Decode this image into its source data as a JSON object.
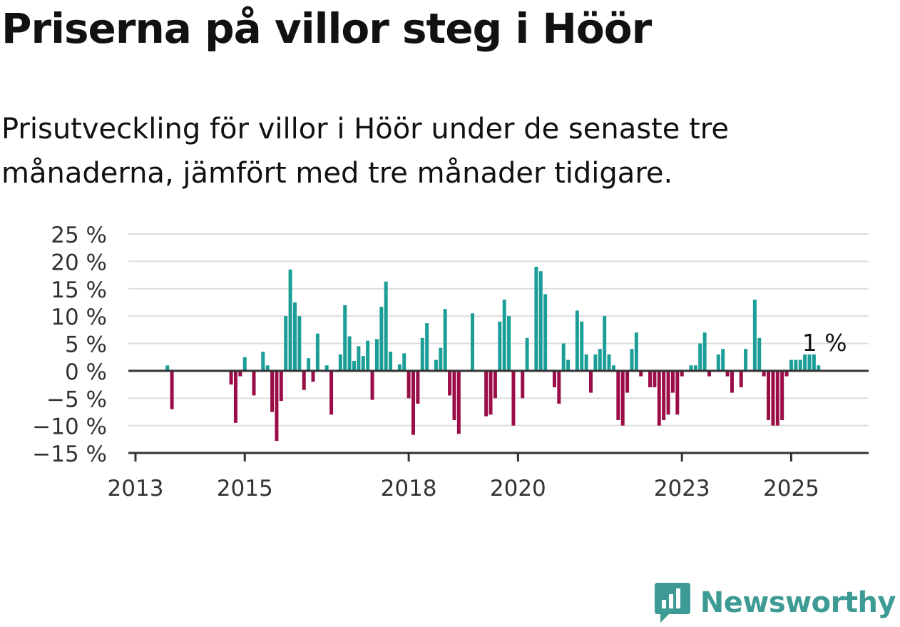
{
  "title": "Priserna på villor steg i Höör",
  "subtitle": "Prisutveckling för villor i Höör under de senaste tre månaderna, jämfört med tre månader tidigare.",
  "brand": {
    "name": "Newsworthy",
    "icon": "newsworthy-logo-icon",
    "color": "#3d9a94"
  },
  "colors": {
    "positive": "#1a9e97",
    "negative": "#9b0d47",
    "grid": "#dddddd",
    "axis": "#333333"
  },
  "chart_data": {
    "type": "bar",
    "x_unit": "month",
    "y_unit": "%",
    "ylim": [
      -15,
      25
    ],
    "y_ticks": [
      25,
      20,
      15,
      10,
      5,
      0,
      -5,
      -10,
      -15
    ],
    "y_tick_labels": [
      "25 %",
      "20 %",
      "15 %",
      "10 %",
      "5 %",
      "0 %",
      "−5 %",
      "−10 %",
      "−15 %"
    ],
    "x_ticks": [
      "2013",
      "2015",
      "2018",
      "2020",
      "2023",
      "2025"
    ],
    "x_range": [
      "2013-01",
      "2026-06"
    ],
    "annotation": {
      "text": "1 %",
      "month": "2025-08",
      "value": 1
    },
    "grid": true,
    "bars": [
      {
        "month": "2013-08",
        "value": 1
      },
      {
        "month": "2013-09",
        "value": -7
      },
      {
        "month": "2014-10",
        "value": -2.5
      },
      {
        "month": "2014-11",
        "value": -9.5
      },
      {
        "month": "2014-12",
        "value": -1
      },
      {
        "month": "2015-01",
        "value": 2.5
      },
      {
        "month": "2015-03",
        "value": -4.5
      },
      {
        "month": "2015-05",
        "value": 3.5
      },
      {
        "month": "2015-06",
        "value": 1
      },
      {
        "month": "2015-07",
        "value": -7.5
      },
      {
        "month": "2015-08",
        "value": -12.8
      },
      {
        "month": "2015-09",
        "value": -5.5
      },
      {
        "month": "2015-10",
        "value": 10
      },
      {
        "month": "2015-11",
        "value": 18.5
      },
      {
        "month": "2015-12",
        "value": 12.5
      },
      {
        "month": "2016-01",
        "value": 10
      },
      {
        "month": "2016-02",
        "value": -3.5
      },
      {
        "month": "2016-03",
        "value": 2.3
      },
      {
        "month": "2016-04",
        "value": -2
      },
      {
        "month": "2016-05",
        "value": 6.8
      },
      {
        "month": "2016-07",
        "value": 1
      },
      {
        "month": "2016-08",
        "value": -8
      },
      {
        "month": "2016-10",
        "value": 3
      },
      {
        "month": "2016-11",
        "value": 12
      },
      {
        "month": "2016-12",
        "value": 6.3
      },
      {
        "month": "2017-01",
        "value": 1.8
      },
      {
        "month": "2017-02",
        "value": 4.5
      },
      {
        "month": "2017-03",
        "value": 2.7
      },
      {
        "month": "2017-04",
        "value": 5.5
      },
      {
        "month": "2017-05",
        "value": -5.3
      },
      {
        "month": "2017-06",
        "value": 5.8
      },
      {
        "month": "2017-07",
        "value": 11.7
      },
      {
        "month": "2017-08",
        "value": 16.3
      },
      {
        "month": "2017-09",
        "value": 3.5
      },
      {
        "month": "2017-11",
        "value": 1.2
      },
      {
        "month": "2017-12",
        "value": 3.2
      },
      {
        "month": "2018-01",
        "value": -5
      },
      {
        "month": "2018-02",
        "value": -11.7
      },
      {
        "month": "2018-03",
        "value": -6
      },
      {
        "month": "2018-04",
        "value": 6
      },
      {
        "month": "2018-05",
        "value": 8.7
      },
      {
        "month": "2018-07",
        "value": 2
      },
      {
        "month": "2018-08",
        "value": 4.2
      },
      {
        "month": "2018-09",
        "value": 11.3
      },
      {
        "month": "2018-10",
        "value": -4.5
      },
      {
        "month": "2018-11",
        "value": -9
      },
      {
        "month": "2018-12",
        "value": -11.5
      },
      {
        "month": "2019-03",
        "value": 10.5
      },
      {
        "month": "2019-06",
        "value": -8.3
      },
      {
        "month": "2019-07",
        "value": -8
      },
      {
        "month": "2019-08",
        "value": -5
      },
      {
        "month": "2019-09",
        "value": 9
      },
      {
        "month": "2019-10",
        "value": 13
      },
      {
        "month": "2019-11",
        "value": 10
      },
      {
        "month": "2019-12",
        "value": -10
      },
      {
        "month": "2020-02",
        "value": -5
      },
      {
        "month": "2020-03",
        "value": 6
      },
      {
        "month": "2020-05",
        "value": 19
      },
      {
        "month": "2020-06",
        "value": 18.2
      },
      {
        "month": "2020-07",
        "value": 14
      },
      {
        "month": "2020-09",
        "value": -3
      },
      {
        "month": "2020-10",
        "value": -6
      },
      {
        "month": "2020-11",
        "value": 5
      },
      {
        "month": "2020-12",
        "value": 2
      },
      {
        "month": "2021-02",
        "value": 11
      },
      {
        "month": "2021-03",
        "value": 9
      },
      {
        "month": "2021-04",
        "value": 3
      },
      {
        "month": "2021-05",
        "value": -4
      },
      {
        "month": "2021-06",
        "value": 3
      },
      {
        "month": "2021-07",
        "value": 4
      },
      {
        "month": "2021-08",
        "value": 10
      },
      {
        "month": "2021-09",
        "value": 3
      },
      {
        "month": "2021-10",
        "value": 1
      },
      {
        "month": "2021-11",
        "value": -9
      },
      {
        "month": "2021-12",
        "value": -10
      },
      {
        "month": "2022-01",
        "value": -4
      },
      {
        "month": "2022-02",
        "value": 4
      },
      {
        "month": "2022-03",
        "value": 7
      },
      {
        "month": "2022-04",
        "value": -1
      },
      {
        "month": "2022-06",
        "value": -3
      },
      {
        "month": "2022-07",
        "value": -3
      },
      {
        "month": "2022-08",
        "value": -10
      },
      {
        "month": "2022-09",
        "value": -9
      },
      {
        "month": "2022-10",
        "value": -8
      },
      {
        "month": "2022-11",
        "value": -4
      },
      {
        "month": "2022-12",
        "value": -8
      },
      {
        "month": "2023-01",
        "value": -1
      },
      {
        "month": "2023-03",
        "value": 1
      },
      {
        "month": "2023-04",
        "value": 1
      },
      {
        "month": "2023-05",
        "value": 5
      },
      {
        "month": "2023-06",
        "value": 7
      },
      {
        "month": "2023-07",
        "value": -1
      },
      {
        "month": "2023-09",
        "value": 3
      },
      {
        "month": "2023-10",
        "value": 4
      },
      {
        "month": "2023-11",
        "value": -1
      },
      {
        "month": "2023-12",
        "value": -4
      },
      {
        "month": "2024-02",
        "value": -3
      },
      {
        "month": "2024-03",
        "value": 4
      },
      {
        "month": "2024-05",
        "value": 13
      },
      {
        "month": "2024-06",
        "value": 6
      },
      {
        "month": "2024-07",
        "value": -1
      },
      {
        "month": "2024-08",
        "value": -9
      },
      {
        "month": "2024-09",
        "value": -10
      },
      {
        "month": "2024-10",
        "value": -10
      },
      {
        "month": "2024-11",
        "value": -9
      },
      {
        "month": "2024-12",
        "value": -1
      },
      {
        "month": "2025-01",
        "value": 2
      },
      {
        "month": "2025-02",
        "value": 2
      },
      {
        "month": "2025-03",
        "value": 2
      },
      {
        "month": "2025-04",
        "value": 3
      },
      {
        "month": "2025-05",
        "value": 3
      },
      {
        "month": "2025-06",
        "value": 3
      },
      {
        "month": "2025-07",
        "value": 1
      }
    ]
  }
}
